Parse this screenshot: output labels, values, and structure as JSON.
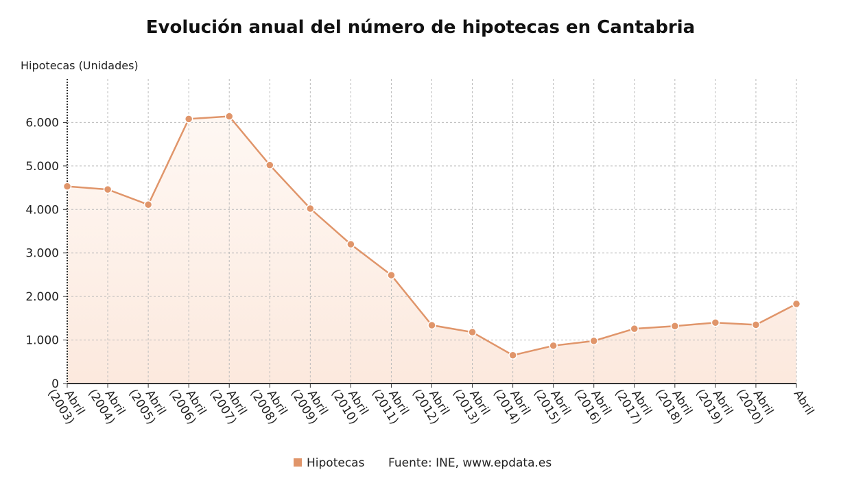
{
  "chart_data": {
    "type": "line",
    "title": "Evolución anual del número de hipotecas en Cantabria",
    "y_label": "Hipotecas (Unidades)",
    "source": "Fuente: INE, www.epdata.es",
    "categories": [
      "Abril (2003)",
      "Abril (2004)",
      "Abril (2005)",
      "Abril (2006)",
      "Abril (2007)",
      "Abril (2008)",
      "Abril (2009)",
      "Abril (2010)",
      "Abril (2011)",
      "Abril (2012)",
      "Abril (2013)",
      "Abril (2014)",
      "Abril (2015)",
      "Abril (2016)",
      "Abril (2017)",
      "Abril (2018)",
      "Abril (2019)",
      "Abril (2020)",
      "Abril"
    ],
    "series": [
      {
        "name": "Hipotecas",
        "color": "#e0956a",
        "values": [
          4530,
          4460,
          4110,
          6080,
          6140,
          5020,
          4020,
          3200,
          2490,
          1340,
          1180,
          650,
          870,
          980,
          1260,
          1320,
          1400,
          1350,
          1830
        ]
      }
    ],
    "ylim": [
      0,
      7000
    ],
    "yticks": [
      0,
      {
        "value": 1000,
        "label": "1.000"
      },
      {
        "value": 2000,
        "label": "2.000"
      },
      {
        "value": 3000,
        "label": "3.000"
      },
      {
        "value": 4000,
        "label": "4.000"
      },
      {
        "value": 5000,
        "label": "5.000"
      },
      {
        "value": 6000,
        "label": "6.000"
      }
    ],
    "grid": true
  }
}
